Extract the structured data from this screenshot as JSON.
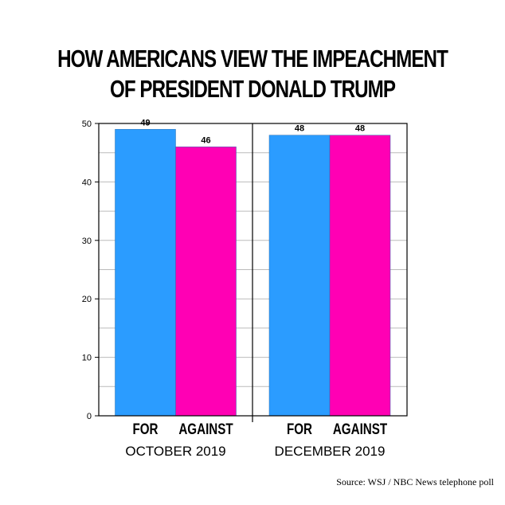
{
  "title_line1": "HOW AMERICANS VIEW THE IMPEACHMENT",
  "title_line2": "OF PRESIDENT DONALD TRUMP",
  "source": "Source: WSJ / NBC News telephone poll",
  "colors": {
    "for": "#2b9cff",
    "against": "#ff00b4",
    "axis": "#000000",
    "grid": "#bbbbbb"
  },
  "chart_data": {
    "type": "bar",
    "title": "HOW AMERICANS VIEW THE IMPEACHMENT OF PRESIDENT DONALD TRUMP",
    "ylim": [
      0,
      50
    ],
    "yticks": [
      0,
      10,
      20,
      30,
      40,
      50
    ],
    "groups": [
      {
        "label": "OCTOBER 2019",
        "bars": [
          {
            "label": "FOR",
            "value": 49
          },
          {
            "label": "AGAINST",
            "value": 46
          }
        ]
      },
      {
        "label": "DECEMBER 2019",
        "bars": [
          {
            "label": "FOR",
            "value": 48
          },
          {
            "label": "AGAINST",
            "value": 48
          }
        ]
      }
    ],
    "grid": true
  }
}
